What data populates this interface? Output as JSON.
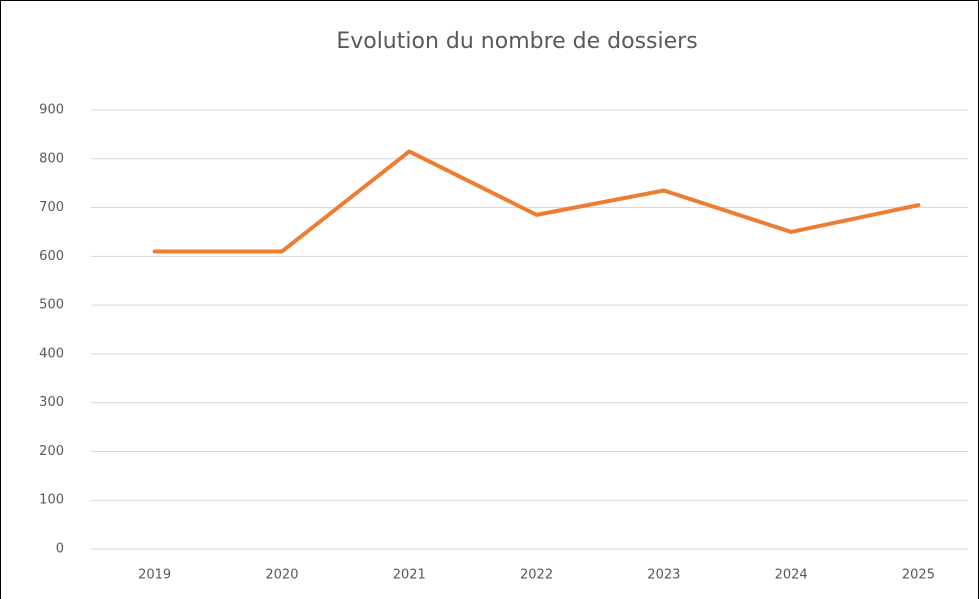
{
  "chart_data": {
    "type": "line",
    "title": "Evolution du nombre de dossiers",
    "categories": [
      "2019",
      "2020",
      "2021",
      "2022",
      "2023",
      "2024",
      "2025"
    ],
    "values": [
      610,
      610,
      815,
      685,
      735,
      650,
      705
    ],
    "color": "#ed7d31",
    "ylim": [
      0,
      900
    ],
    "yticks": [
      0,
      100,
      200,
      300,
      400,
      500,
      600,
      700,
      800,
      900
    ],
    "grid": true
  }
}
